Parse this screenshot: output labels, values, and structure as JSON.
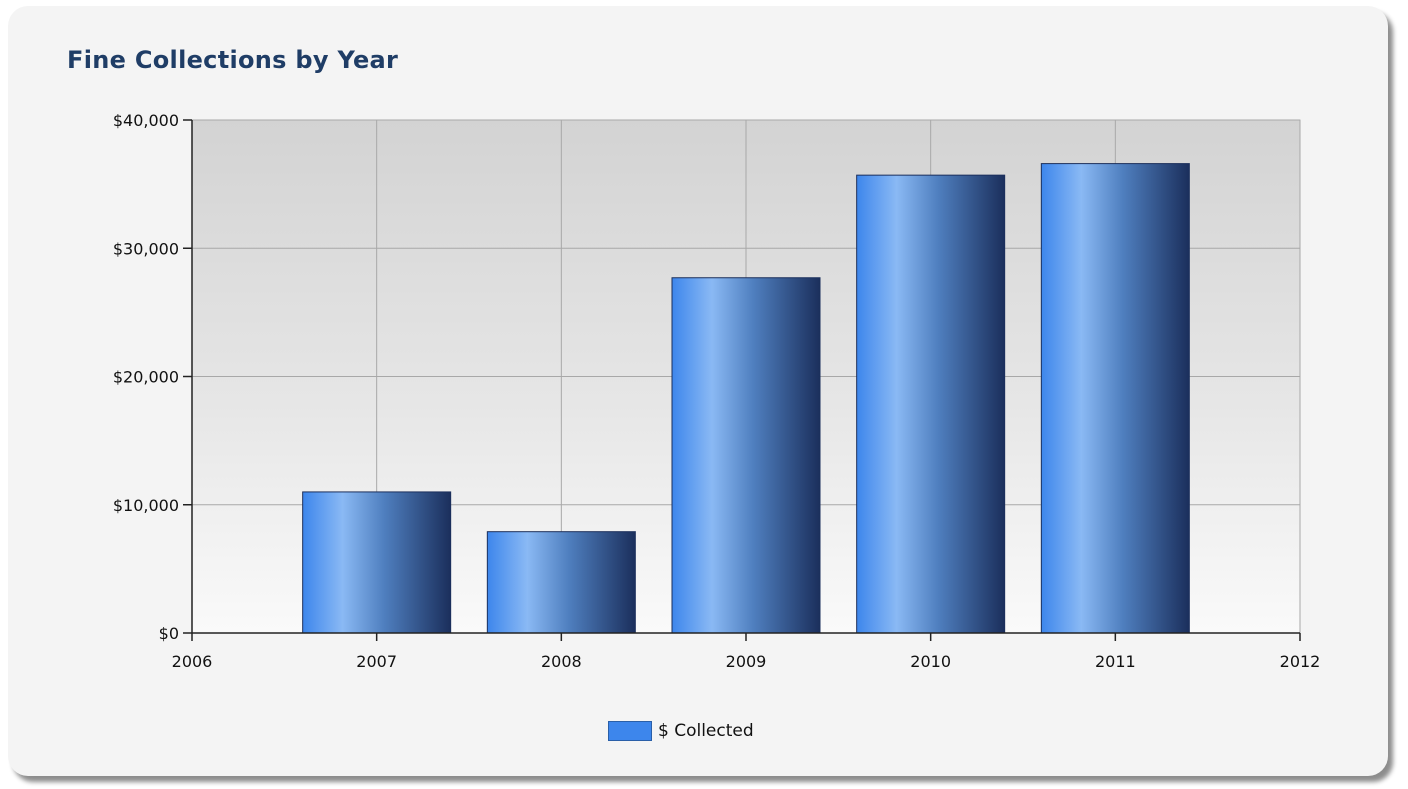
{
  "colors": {
    "title": "#1f3d66",
    "bar_light": "#8ab9f4",
    "bar_mid": "#3d86ec",
    "bar_dark": "#1b2f5c",
    "legend_swatch": "#3d86ec"
  },
  "chart_data": {
    "type": "bar",
    "title": "Fine Collections by Year",
    "xlabel": "",
    "ylabel": "",
    "x_ticks": [
      "2006",
      "2007",
      "2008",
      "2009",
      "2010",
      "2011",
      "2012"
    ],
    "y_ticks": [
      "$0",
      "$10,000",
      "$20,000",
      "$30,000",
      "$40,000"
    ],
    "y_tick_values": [
      0,
      10000,
      20000,
      30000,
      40000
    ],
    "xlim": [
      2006,
      2012
    ],
    "ylim": [
      0,
      40000
    ],
    "grid": true,
    "legend_position": "bottom-center",
    "categories": [
      "2007",
      "2008",
      "2009",
      "2010",
      "2011"
    ],
    "series": [
      {
        "name": "$ Collected",
        "values": [
          11000,
          7900,
          27700,
          35700,
          36600
        ]
      }
    ]
  }
}
